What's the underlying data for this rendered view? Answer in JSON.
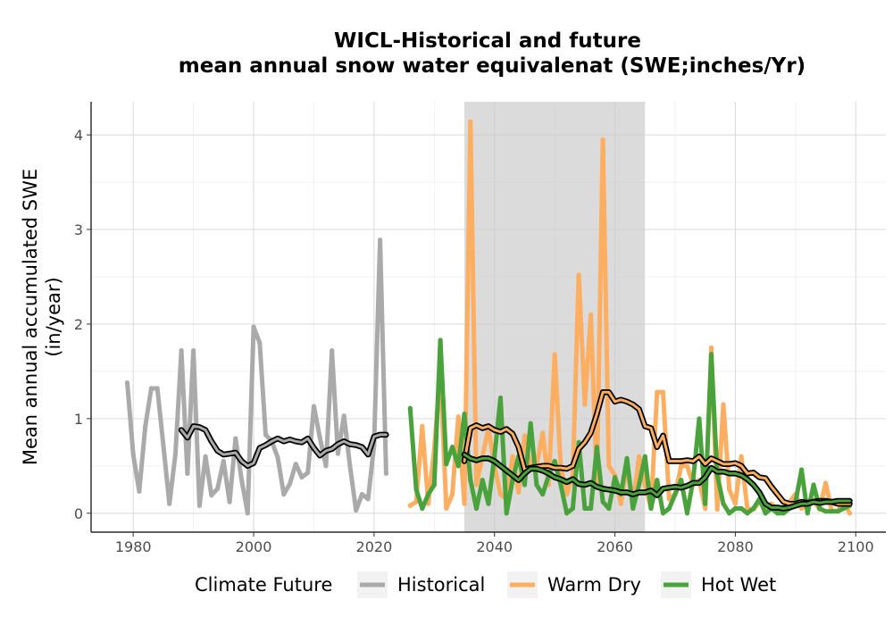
{
  "chart_data": {
    "type": "line",
    "title_line1": "WICL-Historical and future",
    "title_line2": "mean annual snow water equivalenat (SWE;inches/Yr)",
    "ylabel_line1": "Mean annual accumulated SWE",
    "ylabel_line2": "(in/year)",
    "xlabel": "",
    "xlim": [
      1973,
      2105
    ],
    "ylim": [
      -0.2,
      4.35
    ],
    "x_ticks": [
      1980,
      2000,
      2020,
      2040,
      2060,
      2080,
      2100
    ],
    "y_ticks": [
      0,
      1,
      2,
      3,
      4
    ],
    "grid": true,
    "shaded_period": [
      2035,
      2065
    ],
    "legend": {
      "title": "Climate Future",
      "position": "bottom",
      "entries": [
        "Historical",
        "Warm Dry",
        "Hot Wet"
      ]
    },
    "series": [
      {
        "name": "Historical",
        "color": "#aaaaaa",
        "x": [
          1979,
          1980,
          1981,
          1982,
          1983,
          1984,
          1985,
          1986,
          1987,
          1988,
          1989,
          1990,
          1991,
          1992,
          1993,
          1994,
          1995,
          1996,
          1997,
          1998,
          1999,
          2000,
          2001,
          2002,
          2003,
          2004,
          2005,
          2006,
          2007,
          2008,
          2009,
          2010,
          2011,
          2012,
          2013,
          2014,
          2015,
          2016,
          2017,
          2018,
          2019,
          2020,
          2021,
          2022
        ],
        "values": [
          1.38,
          0.62,
          0.23,
          0.92,
          1.32,
          1.32,
          0.72,
          0.1,
          0.62,
          1.72,
          0.42,
          1.72,
          0.08,
          0.6,
          0.19,
          0.26,
          0.55,
          0.12,
          0.79,
          0.35,
          0.0,
          1.97,
          1.8,
          0.83,
          0.76,
          0.59,
          0.2,
          0.31,
          0.52,
          0.38,
          0.43,
          1.13,
          0.8,
          0.5,
          1.72,
          0.63,
          1.03,
          0.5,
          0.03,
          0.2,
          0.15,
          0.72,
          2.89,
          0.42
        ],
        "rolling_x": [
          1988,
          1989,
          1990,
          1991,
          1992,
          1993,
          1994,
          1995,
          1996,
          1997,
          1998,
          1999,
          2000,
          2001,
          2002,
          2003,
          2004,
          2005,
          2006,
          2007,
          2008,
          2009,
          2010,
          2011,
          2012,
          2013,
          2014,
          2015,
          2016,
          2017,
          2018,
          2019,
          2020,
          2021,
          2022
        ],
        "rolling_values": [
          0.88,
          0.8,
          0.92,
          0.91,
          0.88,
          0.76,
          0.66,
          0.62,
          0.63,
          0.64,
          0.55,
          0.5,
          0.53,
          0.69,
          0.72,
          0.76,
          0.79,
          0.76,
          0.78,
          0.76,
          0.75,
          0.79,
          0.69,
          0.61,
          0.66,
          0.68,
          0.73,
          0.76,
          0.73,
          0.72,
          0.7,
          0.62,
          0.81,
          0.83,
          0.83
        ]
      },
      {
        "name": "Warm Dry",
        "color": "#fdae61",
        "x": [
          2026,
          2027,
          2028,
          2029,
          2030,
          2031,
          2032,
          2033,
          2034,
          2035,
          2036,
          2037,
          2038,
          2039,
          2040,
          2041,
          2042,
          2043,
          2044,
          2045,
          2046,
          2047,
          2048,
          2049,
          2050,
          2051,
          2052,
          2053,
          2054,
          2055,
          2056,
          2057,
          2058,
          2059,
          2060,
          2061,
          2062,
          2063,
          2064,
          2065,
          2066,
          2067,
          2068,
          2069,
          2070,
          2071,
          2072,
          2073,
          2074,
          2075,
          2076,
          2077,
          2078,
          2079,
          2080,
          2081,
          2082,
          2083,
          2084,
          2085,
          2086,
          2087,
          2088,
          2089,
          2090,
          2091,
          2092,
          2093,
          2094,
          2095,
          2096,
          2097,
          2098,
          2099
        ],
        "values": [
          0.08,
          0.12,
          0.92,
          0.1,
          0.68,
          1.48,
          0.05,
          0.2,
          1.02,
          0.1,
          4.14,
          0.3,
          0.6,
          0.9,
          0.5,
          0.2,
          0.15,
          0.6,
          0.22,
          0.82,
          0.5,
          0.5,
          0.85,
          0.3,
          1.68,
          0.5,
          0.2,
          0.4,
          2.52,
          1.15,
          2.1,
          0.3,
          3.95,
          0.5,
          0.4,
          0.1,
          0.5,
          0.1,
          0.6,
          0.3,
          0.05,
          1.28,
          1.28,
          0.15,
          0.2,
          0.5,
          0.5,
          0.3,
          0.35,
          0.05,
          1.75,
          0.04,
          1.15,
          0.25,
          0.1,
          0.6,
          0.05,
          0.04,
          0.12,
          0.05,
          0.1,
          0.04,
          0.05,
          0.12,
          0.2,
          0.05,
          0.1,
          0.14,
          0.04,
          0.32,
          0.03,
          0.02,
          0.12,
          0.0
        ],
        "rolling_x": [
          2035,
          2036,
          2037,
          2038,
          2039,
          2040,
          2041,
          2042,
          2043,
          2044,
          2045,
          2046,
          2047,
          2048,
          2049,
          2050,
          2051,
          2052,
          2053,
          2054,
          2055,
          2056,
          2057,
          2058,
          2059,
          2060,
          2061,
          2062,
          2063,
          2064,
          2065,
          2066,
          2067,
          2068,
          2069,
          2070,
          2071,
          2072,
          2073,
          2074,
          2075,
          2076,
          2077,
          2078,
          2079,
          2080,
          2081,
          2082,
          2083,
          2084,
          2085,
          2086,
          2087,
          2088,
          2089,
          2090,
          2091,
          2092,
          2093,
          2094,
          2095,
          2096,
          2097,
          2098,
          2099
        ],
        "rolling_values": [
          0.55,
          0.9,
          0.93,
          0.9,
          0.92,
          0.88,
          0.86,
          0.89,
          0.84,
          0.7,
          0.46,
          0.48,
          0.49,
          0.5,
          0.5,
          0.48,
          0.48,
          0.47,
          0.5,
          0.68,
          0.75,
          0.85,
          1.05,
          1.28,
          1.28,
          1.18,
          1.2,
          1.18,
          1.15,
          1.1,
          0.92,
          0.9,
          0.7,
          0.82,
          0.55,
          0.55,
          0.55,
          0.56,
          0.55,
          0.6,
          0.52,
          0.58,
          0.55,
          0.52,
          0.52,
          0.53,
          0.5,
          0.42,
          0.43,
          0.38,
          0.37,
          0.28,
          0.2,
          0.12,
          0.1,
          0.1,
          0.12,
          0.11,
          0.12,
          0.13,
          0.13,
          0.12,
          0.1,
          0.1,
          0.1
        ]
      },
      {
        "name": "Hot Wet",
        "color": "#4aa23c",
        "x": [
          2026,
          2027,
          2028,
          2029,
          2030,
          2031,
          2032,
          2033,
          2034,
          2035,
          2036,
          2037,
          2038,
          2039,
          2040,
          2041,
          2042,
          2043,
          2044,
          2045,
          2046,
          2047,
          2048,
          2049,
          2050,
          2051,
          2052,
          2053,
          2054,
          2055,
          2056,
          2057,
          2058,
          2059,
          2060,
          2061,
          2062,
          2063,
          2064,
          2065,
          2066,
          2067,
          2068,
          2069,
          2070,
          2071,
          2072,
          2073,
          2074,
          2075,
          2076,
          2077,
          2078,
          2079,
          2080,
          2081,
          2082,
          2083,
          2084,
          2085,
          2086,
          2087,
          2088,
          2089,
          2090,
          2091,
          2092,
          2093,
          2094,
          2095,
          2096,
          2097,
          2098,
          2099
        ],
        "values": [
          1.11,
          0.25,
          0.05,
          0.2,
          0.3,
          1.83,
          0.52,
          0.7,
          0.5,
          1.05,
          0.35,
          0.05,
          0.35,
          0.1,
          0.6,
          1.22,
          0.0,
          0.35,
          0.6,
          0.3,
          0.95,
          0.3,
          0.2,
          0.4,
          0.55,
          0.3,
          0.0,
          0.05,
          0.75,
          0.05,
          0.05,
          0.7,
          0.12,
          0.05,
          0.38,
          0.2,
          0.58,
          0.05,
          0.3,
          0.6,
          0.05,
          0.35,
          0.0,
          0.05,
          0.2,
          0.35,
          0.0,
          0.35,
          1.0,
          0.1,
          1.68,
          0.4,
          0.1,
          0.0,
          0.05,
          0.05,
          0.0,
          0.05,
          0.15,
          0.0,
          0.05,
          0.0,
          0.0,
          0.05,
          0.12,
          0.46,
          0.0,
          0.3,
          0.05,
          0.02,
          0.02,
          0.02,
          0.05,
          0.08
        ],
        "rolling_x": [
          2035,
          2036,
          2037,
          2038,
          2039,
          2040,
          2041,
          2042,
          2043,
          2044,
          2045,
          2046,
          2047,
          2048,
          2049,
          2050,
          2051,
          2052,
          2053,
          2054,
          2055,
          2056,
          2057,
          2058,
          2059,
          2060,
          2061,
          2062,
          2063,
          2064,
          2065,
          2066,
          2067,
          2068,
          2069,
          2070,
          2071,
          2072,
          2073,
          2074,
          2075,
          2076,
          2077,
          2078,
          2079,
          2080,
          2081,
          2082,
          2083,
          2084,
          2085,
          2086,
          2087,
          2088,
          2089,
          2090,
          2091,
          2092,
          2093,
          2094,
          2095,
          2096,
          2097,
          2098,
          2099
        ],
        "rolling_values": [
          0.62,
          0.58,
          0.56,
          0.58,
          0.58,
          0.55,
          0.5,
          0.45,
          0.4,
          0.35,
          0.42,
          0.47,
          0.47,
          0.45,
          0.42,
          0.38,
          0.36,
          0.33,
          0.36,
          0.31,
          0.3,
          0.32,
          0.28,
          0.26,
          0.25,
          0.24,
          0.22,
          0.22,
          0.2,
          0.22,
          0.22,
          0.24,
          0.19,
          0.26,
          0.27,
          0.28,
          0.27,
          0.29,
          0.32,
          0.32,
          0.38,
          0.48,
          0.44,
          0.44,
          0.42,
          0.42,
          0.4,
          0.36,
          0.3,
          0.22,
          0.1,
          0.06,
          0.06,
          0.05,
          0.06,
          0.08,
          0.1,
          0.1,
          0.12,
          0.11,
          0.12,
          0.12,
          0.13,
          0.13,
          0.13
        ]
      }
    ]
  }
}
